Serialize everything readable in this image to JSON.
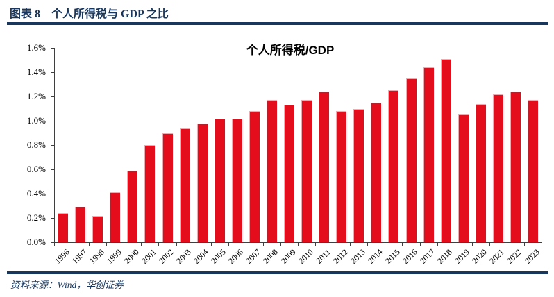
{
  "header": {
    "figure_label": "图表 8",
    "title": "个人所得税与 GDP 之比"
  },
  "footer": {
    "source": "资料来源：Wind，华创证券"
  },
  "colors": {
    "navy_accent": "#17375E",
    "bar_red": "#E30D1C",
    "bar_highlight_edge": "#F2A9B0",
    "axis_line": "#3F3F3F",
    "text_black": "#000000"
  },
  "chart_data": {
    "type": "bar",
    "title": "个人所得税/GDP",
    "unit": "%",
    "categories": [
      "1996",
      "1997",
      "1998",
      "1999",
      "2000",
      "2001",
      "2002",
      "2003",
      "2004",
      "2005",
      "2006",
      "2007",
      "2008",
      "2009",
      "2010",
      "2011",
      "2012",
      "2013",
      "2014",
      "2015",
      "2016",
      "2017",
      "2018",
      "2019",
      "2020",
      "2021",
      "2022",
      "2023"
    ],
    "values": [
      0.24,
      0.29,
      0.22,
      0.41,
      0.59,
      0.8,
      0.9,
      0.94,
      0.98,
      1.02,
      1.02,
      1.08,
      1.17,
      1.13,
      1.17,
      1.24,
      1.08,
      1.1,
      1.15,
      1.25,
      1.35,
      1.44,
      1.51,
      1.05,
      1.14,
      1.22,
      1.24,
      1.17
    ],
    "xlabel": "",
    "ylabel": "",
    "ylim": [
      0,
      1.6
    ],
    "ytick_step": 0.2,
    "ytick_labels": [
      "0.0%",
      "0.2%",
      "0.4%",
      "0.6%",
      "0.8%",
      "1.0%",
      "1.2%",
      "1.4%",
      "1.6%"
    ],
    "grid": false,
    "legend": null,
    "bar_color": "#E30D1C",
    "x_tick_rotation_deg": -45
  }
}
